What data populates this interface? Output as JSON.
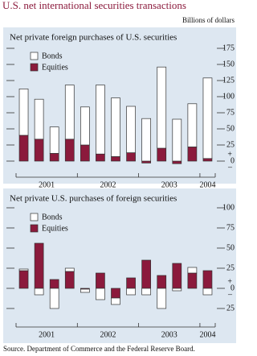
{
  "title": "U.S. net international securities transactions",
  "unit_label": "Billions of dollars",
  "source": "Source. Department of Commerce and the Federal Reserve Board.",
  "chart_data": [
    {
      "type": "stacked-bar",
      "title": "Net private foreign purchases of U.S. securities",
      "categories": [
        null,
        null,
        null,
        null,
        null,
        null,
        null,
        null,
        null,
        null,
        null,
        null,
        null
      ],
      "groups": [
        {
          "label": "2001",
          "count": 4
        },
        {
          "label": "2002",
          "count": 4
        },
        {
          "label": "2003",
          "count": 4
        },
        {
          "label": "2004",
          "count": 1
        }
      ],
      "series": [
        {
          "name": "Equities",
          "color": "#8b1a3c",
          "values": [
            40,
            34,
            12,
            34,
            25,
            11,
            7,
            13,
            -3,
            20,
            -4,
            22,
            4
          ]
        },
        {
          "name": "Bonds",
          "color": "#ffffff",
          "values": [
            72,
            62,
            41,
            84,
            59,
            107,
            91,
            72,
            66,
            126,
            65,
            67,
            125
          ]
        }
      ],
      "ylim": [
        -15,
        180
      ],
      "yticks": [
        0,
        25,
        50,
        75,
        100,
        125,
        150,
        175
      ],
      "sign_labels": [
        "+",
        "–"
      ]
    },
    {
      "type": "stacked-bar",
      "title": "Net private U.S. purchases of foreign securities",
      "categories": [
        null,
        null,
        null,
        null,
        null,
        null,
        null,
        null,
        null,
        null,
        null,
        null,
        null
      ],
      "groups": [
        {
          "label": "2001",
          "count": 4
        },
        {
          "label": "2002",
          "count": 4
        },
        {
          "label": "2003",
          "count": 4
        },
        {
          "label": "2004",
          "count": 1
        }
      ],
      "series": [
        {
          "name": "Equities",
          "color": "#8b1a3c",
          "values": [
            22,
            56,
            11,
            21,
            -1,
            19,
            -12,
            13,
            35,
            16,
            31,
            19,
            22
          ]
        },
        {
          "name": "Bonds",
          "color": "#ffffff",
          "values": [
            2,
            -8,
            -25,
            4,
            -4,
            -14,
            -8,
            -8,
            -8,
            -25,
            -3,
            7,
            -8
          ]
        }
      ],
      "ylim": [
        -40,
        105
      ],
      "yticks": [
        {
          "value": -25,
          "label": "25"
        },
        0,
        25,
        50,
        75,
        100
      ],
      "sign_labels": [
        "+",
        "–"
      ]
    }
  ]
}
